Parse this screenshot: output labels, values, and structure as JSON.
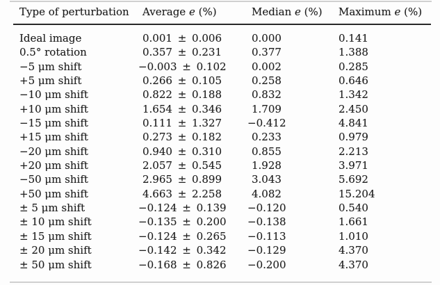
{
  "colors": {
    "background": "#fdfdfd",
    "text": "#1d1d1d",
    "header_rule": "#282828",
    "faint_rule": "#9a9a9a"
  },
  "table": {
    "headers": {
      "type": "Type of perturbation",
      "average": {
        "pre": "Average ",
        "sym": "e",
        "post": " (%)"
      },
      "median": {
        "pre": "Median ",
        "sym": "e",
        "post": " (%)"
      },
      "maximum": {
        "pre": "Maximum ",
        "sym": "e",
        "post": " (%)"
      }
    },
    "rows": [
      {
        "label": "Ideal image",
        "average": "0.001 ± 0.006",
        "median": "0.000",
        "maximum": "0.141"
      },
      {
        "label": "0.5° rotation",
        "average": "0.357 ± 0.231",
        "median": "0.377",
        "maximum": "1.388"
      },
      {
        "label": "−5 μm shift",
        "average": "−0.003 ± 0.102",
        "median": "0.002",
        "maximum": "0.285"
      },
      {
        "label": "+5 μm shift",
        "average": "0.266 ± 0.105",
        "median": "0.258",
        "maximum": "0.646"
      },
      {
        "label": "−10 μm shift",
        "average": "0.822 ± 0.188",
        "median": "0.832",
        "maximum": "1.342"
      },
      {
        "label": "+10 μm shift",
        "average": "1.654 ± 0.346",
        "median": "1.709",
        "maximum": "2.450"
      },
      {
        "label": "−15 μm shift",
        "average": "0.111 ± 1.327",
        "median": "−0.412",
        "maximum": "4.841"
      },
      {
        "label": "+15 μm shift",
        "average": "0.273 ± 0.182",
        "median": "0.233",
        "maximum": "0.979"
      },
      {
        "label": "−20 μm shift",
        "average": "0.940 ± 0.310",
        "median": "0.855",
        "maximum": "2.213"
      },
      {
        "label": "+20 μm shift",
        "average": "2.057 ± 0.545",
        "median": "1.928",
        "maximum": "3.971"
      },
      {
        "label": "−50 μm shift",
        "average": "2.965 ± 0.899",
        "median": "3.043",
        "maximum": "5.692"
      },
      {
        "label": "+50 μm shift",
        "average": "4.663 ± 2.258",
        "median": "4.082",
        "maximum": "15.204"
      },
      {
        "label": "± 5 μm shift",
        "average": "−0.124 ± 0.139",
        "median": "−0.120",
        "maximum": "0.540"
      },
      {
        "label": "± 10 μm shift",
        "average": "−0.135 ± 0.200",
        "median": "−0.138",
        "maximum": "1.661"
      },
      {
        "label": "± 15 μm shift",
        "average": "−0.124 ± 0.265",
        "median": "−0.113",
        "maximum": "1.010"
      },
      {
        "label": "± 20 μm shift",
        "average": "−0.142 ± 0.342",
        "median": "−0.129",
        "maximum": "4.370"
      },
      {
        "label": "± 50 μm shift",
        "average": "−0.168 ± 0.826",
        "median": "−0.200",
        "maximum": "4.370"
      }
    ]
  }
}
